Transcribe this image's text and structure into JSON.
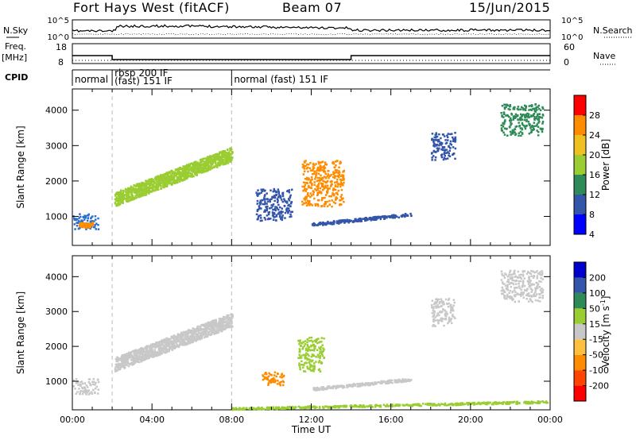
{
  "header": {
    "radar": "Fort Hays West (fitACF)",
    "beam": "Beam 07",
    "date": "15/Jun/2015"
  },
  "noise_panel": {
    "left_label": "N.Sky",
    "right_label": "N.Search",
    "left_ticks": [
      "10^5",
      "10^0"
    ],
    "right_ticks": [
      "10^5",
      "10^0"
    ]
  },
  "freq_panel": {
    "left_label": "Freq.",
    "left_unit": "[MHz]",
    "right_label": "Nave",
    "left_ticks": [
      "18",
      "8"
    ],
    "right_ticks": [
      "60",
      "0"
    ],
    "freq_steps": [
      {
        "t": 0,
        "v": 12
      },
      {
        "t": 2,
        "v": 10
      },
      {
        "t": 14,
        "v": 12
      },
      {
        "t": 24,
        "v": 12
      }
    ]
  },
  "cpid": {
    "label": "CPID",
    "segments": [
      {
        "t": 0,
        "text": "normal"
      },
      {
        "t": 2,
        "text": "rbsp 200 IF"
      },
      {
        "t": 2,
        "text": "(fast) 151 IF"
      },
      {
        "t": 8,
        "text": "normal (fast) 151 IF"
      }
    ]
  },
  "chart_data": [
    {
      "type": "heatmap",
      "name": "power",
      "ylabel": "Slant Range [km]",
      "ylim": [
        180,
        4600
      ],
      "xlim": [
        0,
        24
      ],
      "yticks": [
        "1000",
        "2000",
        "3000",
        "4000"
      ],
      "colorbar_label": "Power [dB]",
      "colorbar_ticks": [
        "28",
        "24",
        "20",
        "16",
        "12",
        "8",
        "4"
      ],
      "colorbar_colors": [
        "#0000ff",
        "#3355aa",
        "#2e8b57",
        "#9acd32",
        "#f0c020",
        "#ff8c00",
        "#ff0000"
      ],
      "blobs": [
        {
          "t0": 0.0,
          "t1": 1.3,
          "r0": 650,
          "r1": 1100,
          "c": "#2a6fd0"
        },
        {
          "t0": 0.3,
          "t1": 1.0,
          "r0": 700,
          "r1": 850,
          "c": "#ff8c00"
        },
        {
          "t0": 2.1,
          "t1": 8.0,
          "r0": 1300,
          "r1": 2900,
          "c": "#9acd32"
        },
        {
          "t0": 9.2,
          "t1": 11.0,
          "r0": 900,
          "r1": 1800,
          "c": "#3355aa"
        },
        {
          "t0": 11.5,
          "t1": 13.6,
          "r0": 1300,
          "r1": 2600,
          "c": "#ff8c00"
        },
        {
          "t0": 12.0,
          "t1": 17.0,
          "r0": 750,
          "r1": 1100,
          "c": "#3355aa"
        },
        {
          "t0": 18.0,
          "t1": 19.2,
          "r0": 2600,
          "r1": 3400,
          "c": "#3355aa"
        },
        {
          "t0": 21.5,
          "t1": 23.6,
          "r0": 3300,
          "r1": 4200,
          "c": "#2e8b57"
        }
      ]
    },
    {
      "type": "heatmap",
      "name": "velocity",
      "ylabel": "Slant Range [km]",
      "xlabel": "Time UT",
      "ylim": [
        180,
        4600
      ],
      "xlim": [
        0,
        24
      ],
      "yticks": [
        "1000",
        "2000",
        "3000",
        "4000"
      ],
      "xticks": [
        "00:00",
        "04:00",
        "08:00",
        "12:00",
        "16:00",
        "20:00",
        "00:00"
      ],
      "colorbar_label": "Velocity [m s",
      "colorbar_label_sup": "-1",
      "colorbar_ticks": [
        "200",
        "100",
        "50",
        "15",
        "-15",
        "-50",
        "-100",
        "-200"
      ],
      "colorbar_colors": [
        "#ff0000",
        "#ff4500",
        "#ff8c00",
        "#ffc040",
        "#c8c8c8",
        "#9acd32",
        "#2e8b57",
        "#3355aa",
        "#0000cd"
      ],
      "blobs": [
        {
          "t0": 0.0,
          "t1": 1.3,
          "r0": 650,
          "r1": 1100,
          "c": "#c8c8c8"
        },
        {
          "t0": 2.1,
          "t1": 8.0,
          "r0": 1300,
          "r1": 2900,
          "c": "#c8c8c8"
        },
        {
          "t0": 9.5,
          "t1": 10.6,
          "r0": 900,
          "r1": 1300,
          "c": "#ff8c00"
        },
        {
          "t0": 11.3,
          "t1": 12.6,
          "r0": 1300,
          "r1": 2300,
          "c": "#9acd32"
        },
        {
          "t0": 12.0,
          "t1": 17.0,
          "r0": 750,
          "r1": 1100,
          "c": "#c8c8c8"
        },
        {
          "t0": 18.0,
          "t1": 19.2,
          "r0": 2600,
          "r1": 3400,
          "c": "#c8c8c8"
        },
        {
          "t0": 21.5,
          "t1": 23.6,
          "r0": 3300,
          "r1": 4200,
          "c": "#c8c8c8"
        },
        {
          "t0": 8.0,
          "t1": 24.0,
          "r0": 200,
          "r1": 450,
          "c": "#9acd32"
        }
      ]
    }
  ]
}
